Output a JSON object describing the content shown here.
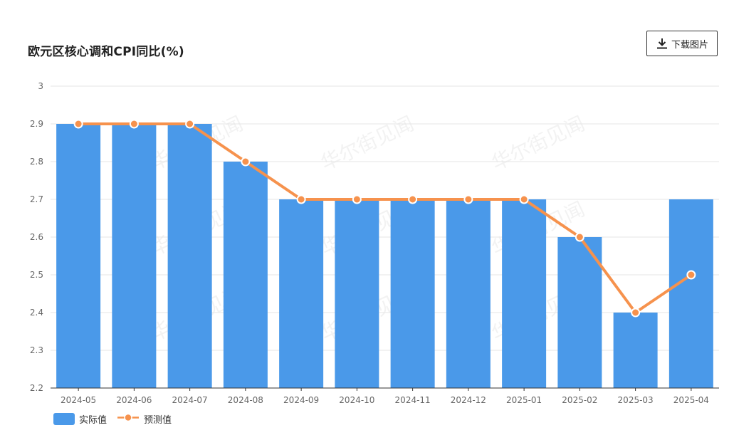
{
  "title": "欧元区核心调和CPI同比(%)",
  "download": {
    "label": "下载图片",
    "icon": "download-icon"
  },
  "watermark": "华尔街见闻",
  "colors": {
    "bar": "#4A99E9",
    "line": "#F6924D",
    "grid": "#E6E6E6",
    "axis": "#666666"
  },
  "chart_data": {
    "type": "bar",
    "categories": [
      "2024-05",
      "2024-06",
      "2024-07",
      "2024-08",
      "2024-09",
      "2024-10",
      "2024-11",
      "2024-12",
      "2025-01",
      "2025-02",
      "2025-03",
      "2025-04"
    ],
    "series": [
      {
        "name": "实际值",
        "type": "bar",
        "values": [
          2.9,
          2.9,
          2.9,
          2.8,
          2.7,
          2.7,
          2.7,
          2.7,
          2.7,
          2.6,
          2.4,
          2.7
        ]
      },
      {
        "name": "预测值",
        "type": "line",
        "values": [
          2.9,
          2.9,
          2.9,
          2.8,
          2.7,
          2.7,
          2.7,
          2.7,
          2.7,
          2.6,
          2.4,
          2.5
        ]
      }
    ],
    "ylim": [
      2.2,
      3
    ],
    "yticks": [
      "2.2",
      "2.3",
      "2.4",
      "2.5",
      "2.6",
      "2.7",
      "2.8",
      "2.9",
      "3"
    ],
    "grid": true,
    "legend": "bottom-left"
  }
}
